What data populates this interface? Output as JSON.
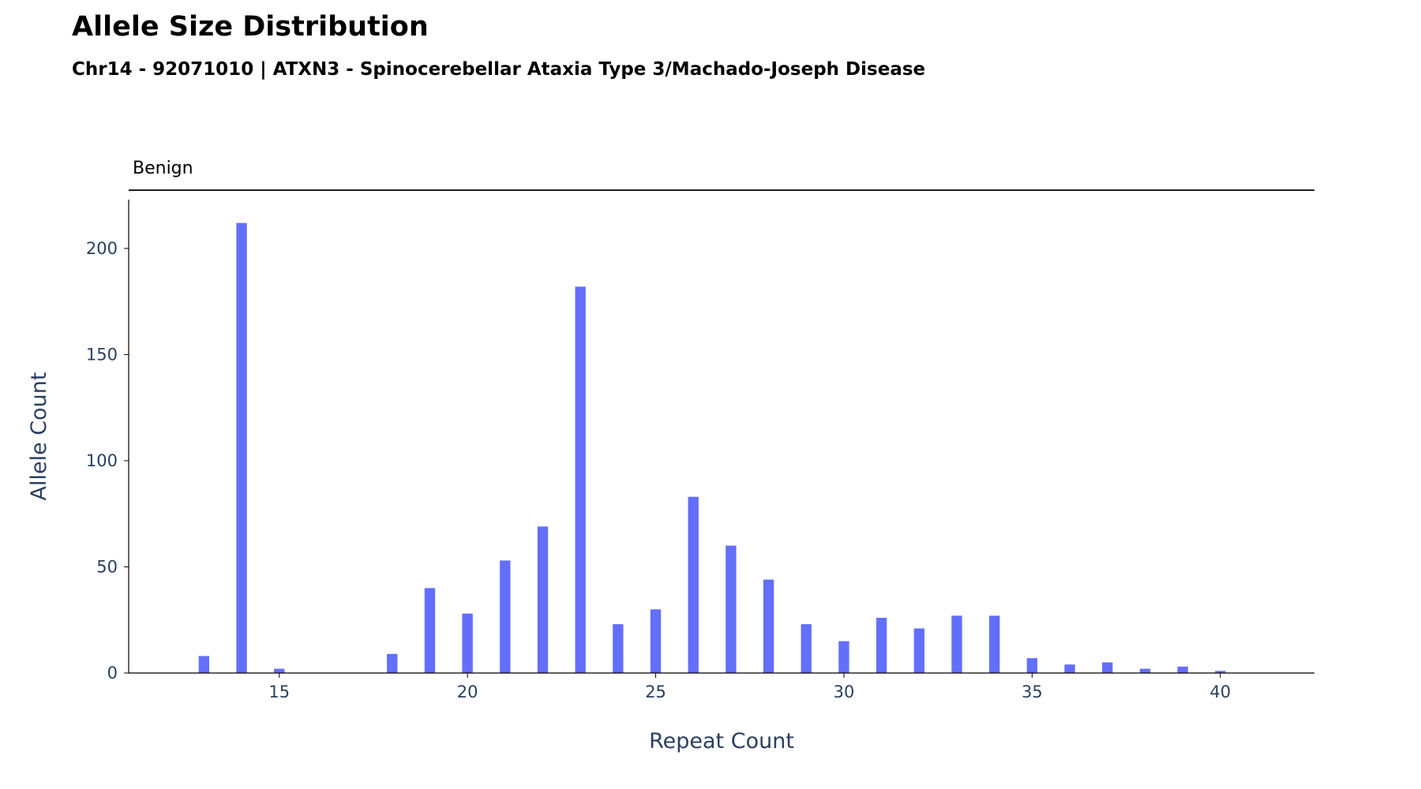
{
  "chart_data": {
    "type": "bar",
    "title": "Allele Size Distribution",
    "subtitle": "Chr14 - 92071010 | ATXN3 - Spinocerebellar Ataxia Type 3/Machado-Joseph Disease",
    "xlabel": "Repeat Count",
    "ylabel": "Allele Count",
    "xlim": [
      11,
      42.5
    ],
    "ylim": [
      0,
      223
    ],
    "xticks": [
      15,
      20,
      25,
      30,
      35,
      40
    ],
    "yticks": [
      0,
      50,
      100,
      150,
      200
    ],
    "grid": false,
    "bar_color": "#636efa",
    "axis_text_color": "#2a3f5f",
    "region": {
      "label": "Benign",
      "x_start": 11,
      "x_end": 42.5
    },
    "x": [
      13,
      14,
      15,
      18,
      19,
      20,
      21,
      22,
      23,
      24,
      25,
      26,
      27,
      28,
      29,
      30,
      31,
      32,
      33,
      34,
      35,
      36,
      37,
      38,
      39,
      40
    ],
    "values": [
      8,
      212,
      2,
      9,
      40,
      28,
      53,
      69,
      182,
      23,
      30,
      83,
      60,
      44,
      23,
      15,
      26,
      21,
      27,
      27,
      7,
      4,
      5,
      2,
      3,
      1
    ]
  }
}
